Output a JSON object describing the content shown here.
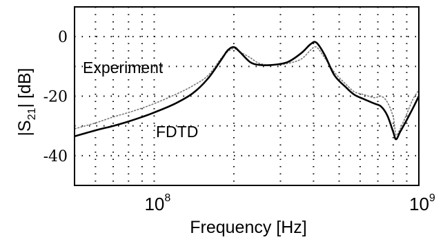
{
  "chart_data": {
    "type": "line",
    "title": "",
    "xlabel": "Frequency  [Hz]",
    "ylabel_main": "|S",
    "ylabel_sub": "21",
    "ylabel_end": "| [dB]",
    "xscale": "log",
    "xlim": [
      50000000,
      1000000000
    ],
    "ylim": [
      -50,
      10
    ],
    "grid": true,
    "yticks": [
      {
        "value": 0,
        "label": "0"
      },
      {
        "value": -20,
        "label": "-20"
      },
      {
        "value": -40,
        "label": "-40"
      }
    ],
    "xticks": [
      {
        "value": 100000000,
        "base": "10",
        "exp": "8"
      },
      {
        "value": 1000000000,
        "base": "10",
        "exp": "9"
      }
    ],
    "xgrid": [
      60000000,
      70000000,
      80000000,
      90000000,
      200000000,
      300000000,
      400000000,
      500000000,
      600000000,
      700000000,
      800000000,
      900000000
    ],
    "ygrid": [
      0,
      -10,
      -20,
      -30,
      -40
    ],
    "series": [
      {
        "name": "Experiment",
        "style": "dotted-gray",
        "color": "#7a7a7a",
        "x": [
          50000000,
          60000000,
          70000000,
          80000000,
          90000000,
          100000000,
          120000000,
          140000000,
          160000000,
          180000000,
          190000000,
          200000000,
          210000000,
          230000000,
          250000000,
          280000000,
          320000000,
          360000000,
          390000000,
          410000000,
          440000000,
          480000000,
          530000000,
          570000000,
          620000000,
          680000000,
          720000000,
          760000000,
          800000000,
          820000000,
          850000000,
          900000000,
          950000000,
          1000000000
        ],
        "y": [
          -31,
          -29,
          -27,
          -25.5,
          -24,
          -22.5,
          -19.5,
          -16.5,
          -13,
          -7,
          -5,
          -4,
          -5,
          -7,
          -9,
          -9.5,
          -9,
          -7.5,
          -4.5,
          -3.5,
          -7,
          -12,
          -16,
          -18.5,
          -19.5,
          -20.5,
          -20,
          -22,
          -27,
          -33,
          -31,
          -26,
          -21,
          -18
        ]
      },
      {
        "name": "FDTD",
        "style": "solid-black",
        "color": "#000000",
        "x": [
          50000000,
          60000000,
          70000000,
          80000000,
          90000000,
          100000000,
          120000000,
          140000000,
          160000000,
          180000000,
          190000000,
          200000000,
          210000000,
          230000000,
          250000000,
          280000000,
          320000000,
          360000000,
          390000000,
          410000000,
          440000000,
          480000000,
          530000000,
          570000000,
          620000000,
          680000000,
          720000000,
          760000000,
          800000000,
          820000000,
          850000000,
          900000000,
          950000000,
          1000000000
        ],
        "y": [
          -33.5,
          -31.5,
          -30,
          -28.5,
          -27,
          -25.5,
          -22.5,
          -19,
          -14,
          -7.5,
          -4.5,
          -3.5,
          -5,
          -8.5,
          -9.5,
          -9.5,
          -8.5,
          -5.5,
          -2.5,
          -2,
          -6,
          -13,
          -17,
          -19.5,
          -21,
          -22.5,
          -23.5,
          -26.5,
          -32,
          -34.5,
          -32,
          -28,
          -24,
          -20
        ]
      }
    ],
    "annotations": [
      {
        "text": "Experiment",
        "series": "Experiment"
      },
      {
        "text": "FDTD",
        "series": "FDTD"
      }
    ]
  }
}
